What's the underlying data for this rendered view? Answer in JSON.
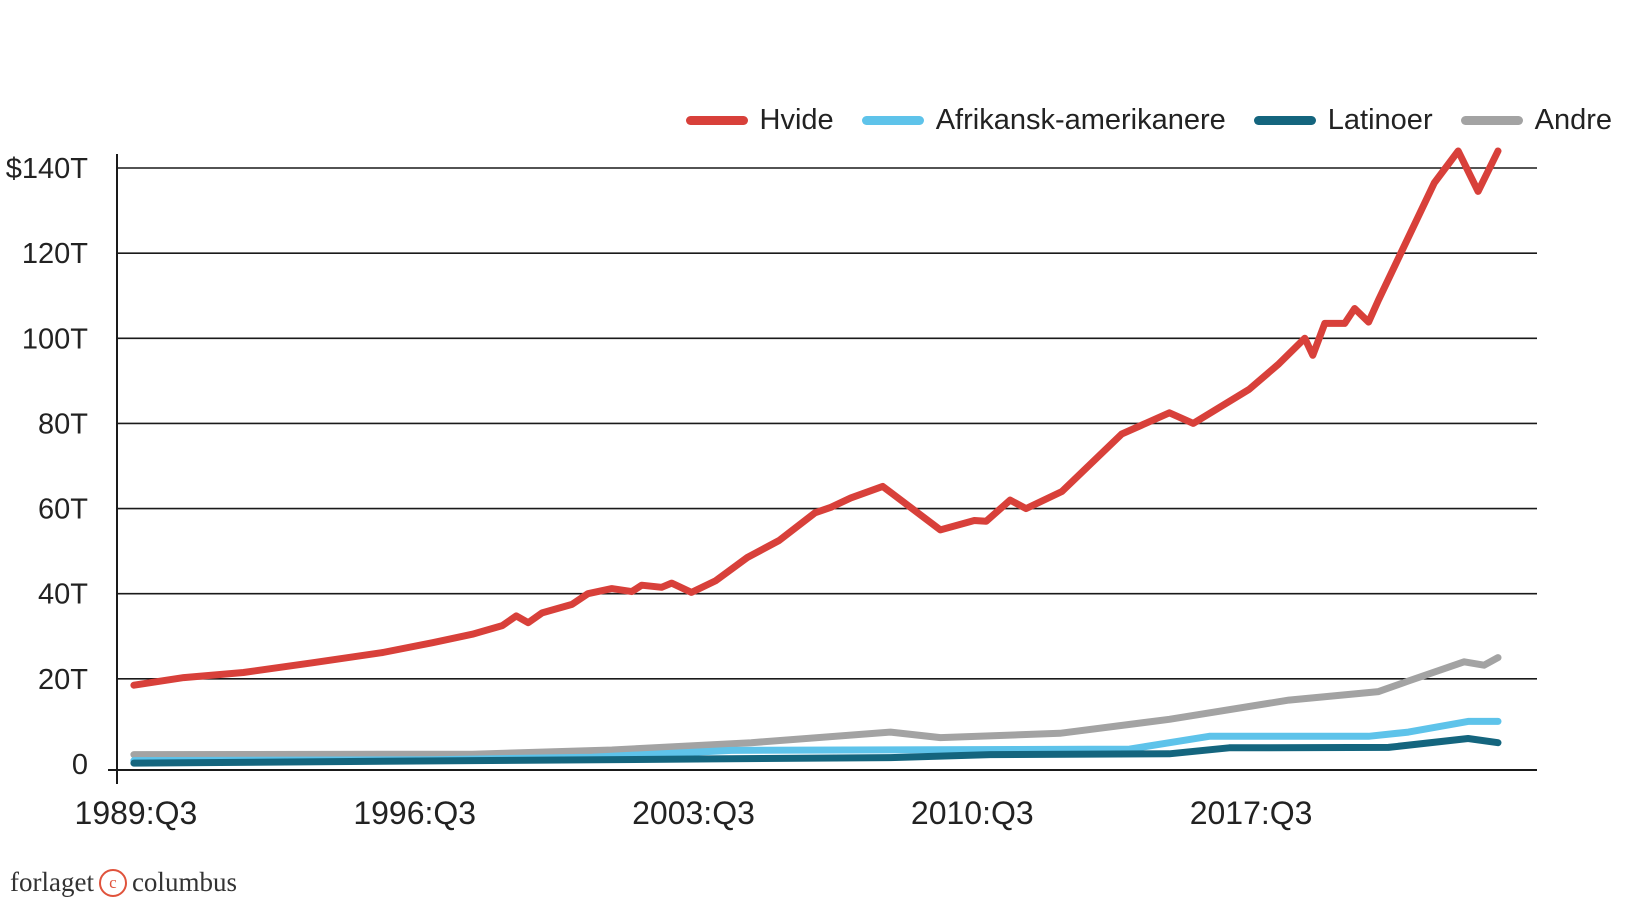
{
  "chart_data": {
    "type": "line",
    "title": "",
    "xlabel": "",
    "ylabel": "",
    "legend_position": "top-right",
    "grid": true,
    "ylim": [
      0,
      140
    ],
    "xlim": [
      1989.0,
      2023.75
    ],
    "y_ticks": [
      {
        "value": 0,
        "label": "0"
      },
      {
        "value": 20,
        "label": "20T"
      },
      {
        "value": 40,
        "label": "40T"
      },
      {
        "value": 60,
        "label": "60T"
      },
      {
        "value": 80,
        "label": "80T"
      },
      {
        "value": 100,
        "label": "100T"
      },
      {
        "value": 120,
        "label": "120T"
      },
      {
        "value": 140,
        "label": "$140T"
      }
    ],
    "x_ticks": [
      {
        "value": 1989.5,
        "label": "1989:Q3"
      },
      {
        "value": 1996.5,
        "label": "1996:Q3"
      },
      {
        "value": 2003.5,
        "label": "2003:Q3"
      },
      {
        "value": 2010.5,
        "label": "2010:Q3"
      },
      {
        "value": 2017.5,
        "label": "2017:Q3"
      }
    ],
    "series": [
      {
        "name": "Hvide",
        "color": "#d8403a",
        "points": [
          [
            1989.5,
            18.5
          ],
          [
            1990.75,
            20.3
          ],
          [
            1992.25,
            21.5
          ],
          [
            1994,
            23.8
          ],
          [
            1995.75,
            26.2
          ],
          [
            1997,
            28.5
          ],
          [
            1998,
            30.5
          ],
          [
            1998.75,
            32.5
          ],
          [
            1999.1,
            34.8
          ],
          [
            1999.4,
            33.2
          ],
          [
            1999.75,
            35.5
          ],
          [
            2000.5,
            37.5
          ],
          [
            2000.9,
            40
          ],
          [
            2001.5,
            41.2
          ],
          [
            2002,
            40.5
          ],
          [
            2002.25,
            42
          ],
          [
            2002.75,
            41.5
          ],
          [
            2003,
            42.5
          ],
          [
            2003.5,
            40.3
          ],
          [
            2004.1,
            43
          ],
          [
            2004.9,
            48.5
          ],
          [
            2005.7,
            52.5
          ],
          [
            2006.6,
            59
          ],
          [
            2007,
            60.3
          ],
          [
            2007.5,
            62.5
          ],
          [
            2008.3,
            65.2
          ],
          [
            2009.75,
            55
          ],
          [
            2010.6,
            57.2
          ],
          [
            2010.9,
            57
          ],
          [
            2011.5,
            62
          ],
          [
            2011.9,
            60
          ],
          [
            2012.8,
            64
          ],
          [
            2014.3,
            77.5
          ],
          [
            2015.5,
            82.5
          ],
          [
            2016.1,
            80
          ],
          [
            2017.5,
            88
          ],
          [
            2018.25,
            94
          ],
          [
            2018.9,
            100
          ],
          [
            2019.1,
            96
          ],
          [
            2019.4,
            103.5
          ],
          [
            2019.9,
            103.5
          ],
          [
            2020.15,
            107
          ],
          [
            2020.5,
            103.8
          ],
          [
            2020.75,
            109
          ],
          [
            2022.15,
            136.5
          ],
          [
            2022.75,
            144
          ],
          [
            2023.25,
            134.5
          ],
          [
            2023.75,
            144
          ]
        ]
      },
      {
        "name": "Afrikansk-amerikanere",
        "color": "#5ec3ea",
        "points": [
          [
            1989.5,
            0.8
          ],
          [
            1997,
            1
          ],
          [
            2001,
            1.6
          ],
          [
            2004.5,
            3.2
          ],
          [
            2014.5,
            3.5
          ],
          [
            2016.5,
            6.5
          ],
          [
            2020.5,
            6.5
          ],
          [
            2021.5,
            7.5
          ],
          [
            2023,
            10
          ],
          [
            2023.75,
            10
          ]
        ]
      },
      {
        "name": "Latinoer",
        "color": "#14657e",
        "points": [
          [
            1989.5,
            0.2
          ],
          [
            2004,
            1.2
          ],
          [
            2008.5,
            1.5
          ],
          [
            2011,
            2.2
          ],
          [
            2015.5,
            2.4
          ],
          [
            2017,
            3.8
          ],
          [
            2021,
            3.9
          ],
          [
            2023,
            6
          ],
          [
            2023.75,
            5
          ]
        ]
      },
      {
        "name": "Andre",
        "color": "#a3a3a3",
        "points": [
          [
            1989.5,
            2.2
          ],
          [
            1998,
            2.3
          ],
          [
            2001.5,
            3.3
          ],
          [
            2005,
            5
          ],
          [
            2008.5,
            7.5
          ],
          [
            2009.75,
            6.2
          ],
          [
            2012.75,
            7.2
          ],
          [
            2015.5,
            10.5
          ],
          [
            2018.5,
            15
          ],
          [
            2020.75,
            17
          ],
          [
            2021.5,
            19.5
          ],
          [
            2022.9,
            24
          ],
          [
            2023.4,
            23.2
          ],
          [
            2023.75,
            25
          ]
        ]
      }
    ]
  },
  "publisher": {
    "left": "forlaget",
    "mark": "c",
    "right": "columbus"
  }
}
